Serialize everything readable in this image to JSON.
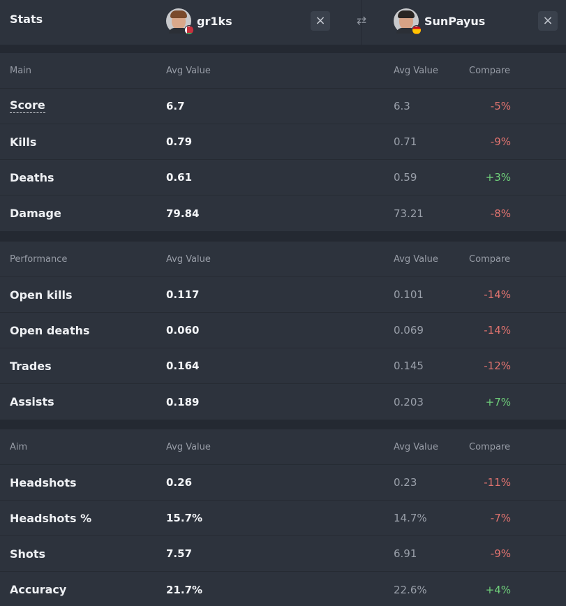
{
  "header": {
    "stats_label": "Stats",
    "player1": {
      "name": "gr1ks",
      "flag": "belarus-flag"
    },
    "player2": {
      "name": "SunPayus",
      "flag": "spain-flag"
    },
    "close_icon": "×",
    "swap_icon": "⇄"
  },
  "sections": [
    {
      "title": "Main",
      "avg_header_1": "Avg Value",
      "avg_header_2": "Avg Value",
      "compare_header": "Compare",
      "rows": [
        {
          "label": "Score",
          "v1": "6.7",
          "v2": "6.3",
          "compare": "-5%",
          "trend": "neg"
        },
        {
          "label": "Kills",
          "v1": "0.79",
          "v2": "0.71",
          "compare": "-9%",
          "trend": "neg"
        },
        {
          "label": "Deaths",
          "v1": "0.61",
          "v2": "0.59",
          "compare": "+3%",
          "trend": "pos"
        },
        {
          "label": "Damage",
          "v1": "79.84",
          "v2": "73.21",
          "compare": "-8%",
          "trend": "neg"
        }
      ]
    },
    {
      "title": "Performance",
      "avg_header_1": "Avg Value",
      "avg_header_2": "Avg Value",
      "compare_header": "Compare",
      "rows": [
        {
          "label": "Open kills",
          "v1": "0.117",
          "v2": "0.101",
          "compare": "-14%",
          "trend": "neg"
        },
        {
          "label": "Open deaths",
          "v1": "0.060",
          "v2": "0.069",
          "compare": "-14%",
          "trend": "neg"
        },
        {
          "label": "Trades",
          "v1": "0.164",
          "v2": "0.145",
          "compare": "-12%",
          "trend": "neg"
        },
        {
          "label": "Assists",
          "v1": "0.189",
          "v2": "0.203",
          "compare": "+7%",
          "trend": "pos"
        }
      ]
    },
    {
      "title": "Aim",
      "avg_header_1": "Avg Value",
      "avg_header_2": "Avg Value",
      "compare_header": "Compare",
      "rows": [
        {
          "label": "Headshots",
          "v1": "0.26",
          "v2": "0.23",
          "compare": "-11%",
          "trend": "neg"
        },
        {
          "label": "Headshots %",
          "v1": "15.7%",
          "v2": "14.7%",
          "compare": "-7%",
          "trend": "neg"
        },
        {
          "label": "Shots",
          "v1": "7.57",
          "v2": "6.91",
          "compare": "-9%",
          "trend": "neg"
        },
        {
          "label": "Accuracy",
          "v1": "21.7%",
          "v2": "22.6%",
          "compare": "+4%",
          "trend": "pos"
        }
      ]
    }
  ],
  "colors": {
    "negative": "#e0736f",
    "positive": "#6fcf7a",
    "panel": "#2d333d",
    "background": "#242932"
  }
}
